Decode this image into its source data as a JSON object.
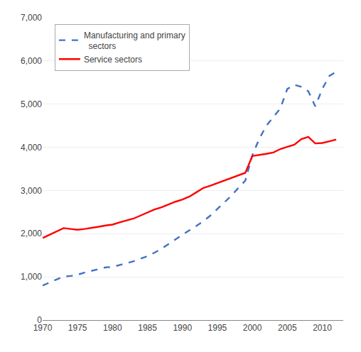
{
  "chart_data": {
    "type": "line",
    "x": [
      1970,
      1971,
      1972,
      1973,
      1974,
      1975,
      1976,
      1977,
      1978,
      1979,
      1980,
      1981,
      1982,
      1983,
      1984,
      1985,
      1986,
      1987,
      1988,
      1989,
      1990,
      1991,
      1992,
      1993,
      1994,
      1995,
      1996,
      1997,
      1998,
      1999,
      2000,
      2001,
      2002,
      2003,
      2004,
      2005,
      2006,
      2007,
      2008,
      2009,
      2010,
      2011,
      2012
    ],
    "series": [
      {
        "name": "Manufacturing and primary\n  sectors",
        "color": "#4472C4",
        "line_style": "dashed",
        "values": [
          800,
          870,
          940,
          1010,
          1020,
          1050,
          1100,
          1140,
          1190,
          1220,
          1230,
          1270,
          1310,
          1360,
          1420,
          1480,
          1560,
          1650,
          1760,
          1870,
          1980,
          2080,
          2180,
          2290,
          2420,
          2570,
          2720,
          2880,
          3060,
          3230,
          3820,
          4200,
          4500,
          4700,
          4900,
          5350,
          5450,
          5400,
          5300,
          4950,
          5350,
          5650,
          5750
        ]
      },
      {
        "name": "Service sectors",
        "color": "#FF0000",
        "line_style": "solid",
        "values": [
          1900,
          1980,
          2060,
          2130,
          2110,
          2090,
          2110,
          2130,
          2160,
          2190,
          2210,
          2260,
          2310,
          2350,
          2420,
          2490,
          2560,
          2610,
          2680,
          2740,
          2790,
          2860,
          2960,
          3060,
          3110,
          3170,
          3230,
          3290,
          3350,
          3410,
          3800,
          3820,
          3850,
          3880,
          3960,
          4010,
          4060,
          4190,
          4240,
          4090,
          4100,
          4140,
          4180
        ]
      }
    ],
    "xlim": [
      1970,
      2013
    ],
    "xticks": [
      1970,
      1975,
      1980,
      1985,
      1990,
      1995,
      2000,
      2005,
      2010
    ],
    "ylim": [
      0,
      7000
    ],
    "yticks": [
      0,
      {
        "value": 1000,
        "label": "1,000"
      },
      {
        "value": 2000,
        "label": "2,000"
      },
      {
        "value": 3000,
        "label": "3,000"
      },
      {
        "value": 4000,
        "label": "4,000"
      },
      {
        "value": 5000,
        "label": "5,000"
      },
      {
        "value": 6000,
        "label": "6,000"
      },
      {
        "value": 7000,
        "label": "7,000"
      }
    ],
    "grid": true,
    "legend": "upper left"
  }
}
